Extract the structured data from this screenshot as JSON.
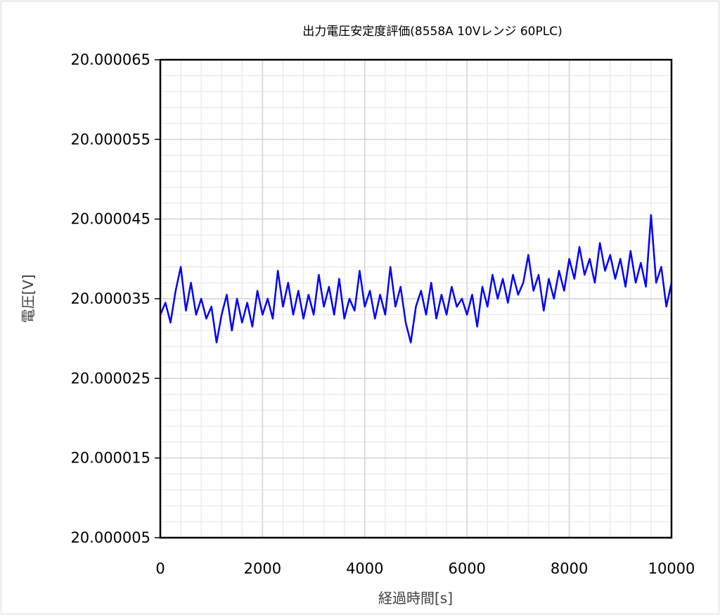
{
  "chart_data": {
    "type": "line",
    "title": "出力電圧安定度評価(8558A 10Vレンジ 60PLC)",
    "xlabel": "経過時間[s]",
    "ylabel": "電圧[V]",
    "xlim": [
      0,
      10000
    ],
    "ylim": [
      20.000005,
      20.000065
    ],
    "x_ticks": [
      "0",
      "2000",
      "4000",
      "6000",
      "8000",
      "10000"
    ],
    "y_ticks": [
      "20.000005",
      "20.000015",
      "20.000025",
      "20.000035",
      "20.000045",
      "20.000055",
      "20.000065"
    ],
    "grid": true,
    "legend": "none",
    "series": [
      {
        "color": "#0000ff",
        "x": [
          0,
          100,
          200,
          300,
          400,
          500,
          600,
          700,
          800,
          900,
          1000,
          1100,
          1200,
          1300,
          1400,
          1500,
          1600,
          1700,
          1800,
          1900,
          2000,
          2100,
          2200,
          2300,
          2400,
          2500,
          2600,
          2700,
          2800,
          2900,
          3000,
          3100,
          3200,
          3300,
          3400,
          3500,
          3600,
          3700,
          3800,
          3900,
          4000,
          4100,
          4200,
          4300,
          4400,
          4500,
          4600,
          4700,
          4800,
          4900,
          5000,
          5100,
          5200,
          5300,
          5400,
          5500,
          5600,
          5700,
          5800,
          5900,
          6000,
          6100,
          6200,
          6300,
          6400,
          6500,
          6600,
          6700,
          6800,
          6900,
          7000,
          7100,
          7200,
          7300,
          7400,
          7500,
          7600,
          7700,
          7800,
          7900,
          8000,
          8100,
          8200,
          8300,
          8400,
          8500,
          8600,
          8700,
          8800,
          8900,
          9000,
          9100,
          9200,
          9300,
          9400,
          9500,
          9600,
          9700,
          9800,
          9900,
          10000
        ],
        "y": [
          20.000033,
          20.0000345,
          20.000032,
          20.000036,
          20.000039,
          20.0000335,
          20.000037,
          20.000033,
          20.000035,
          20.0000325,
          20.000034,
          20.0000295,
          20.000033,
          20.0000355,
          20.000031,
          20.000035,
          20.000032,
          20.0000345,
          20.0000315,
          20.000036,
          20.000033,
          20.000035,
          20.0000325,
          20.0000385,
          20.000034,
          20.000037,
          20.000033,
          20.000036,
          20.0000325,
          20.0000355,
          20.000033,
          20.000038,
          20.000034,
          20.0000365,
          20.000033,
          20.0000375,
          20.0000325,
          20.000035,
          20.0000335,
          20.0000385,
          20.000034,
          20.000036,
          20.0000325,
          20.0000355,
          20.000033,
          20.000039,
          20.000034,
          20.0000365,
          20.000032,
          20.0000295,
          20.000034,
          20.000036,
          20.000033,
          20.000037,
          20.0000325,
          20.0000355,
          20.000033,
          20.0000365,
          20.000034,
          20.000035,
          20.000033,
          20.0000355,
          20.0000315,
          20.0000365,
          20.000034,
          20.000038,
          20.000035,
          20.0000375,
          20.0000345,
          20.000038,
          20.0000355,
          20.000037,
          20.0000405,
          20.000036,
          20.000038,
          20.0000335,
          20.0000375,
          20.000035,
          20.0000385,
          20.000036,
          20.00004,
          20.0000375,
          20.0000415,
          20.000038,
          20.00004,
          20.000037,
          20.000042,
          20.0000385,
          20.0000405,
          20.0000375,
          20.00004,
          20.0000365,
          20.000041,
          20.000037,
          20.0000395,
          20.0000365,
          20.0000455,
          20.000037,
          20.000039,
          20.000034,
          20.000037
        ]
      }
    ]
  }
}
